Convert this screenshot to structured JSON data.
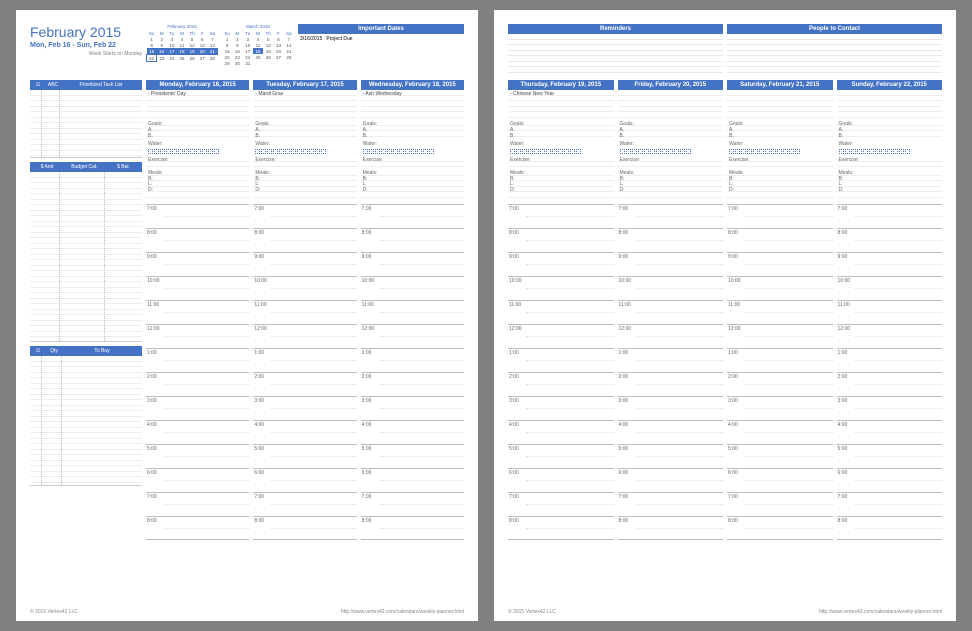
{
  "colors": {
    "accent": "#4472c4",
    "page_bg": "#ffffff",
    "app_bg": "#808080",
    "text_muted": "#7f7f7f",
    "grid": "#d0d0d0"
  },
  "header": {
    "month_title": "February 2015",
    "week_range": "Mon, Feb 16 - Sun, Feb 22",
    "week_start_label": "Week Starts on Monday"
  },
  "mini_calendars": [
    {
      "title": "February 2015",
      "dow": [
        "Su",
        "M",
        "Tu",
        "W",
        "Th",
        "F",
        "Sa"
      ],
      "rows": [
        [
          "1",
          "2",
          "3",
          "4",
          "5",
          "6",
          "7"
        ],
        [
          "8",
          "9",
          "10",
          "11",
          "12",
          "13",
          "14"
        ],
        [
          "15",
          "16",
          "17",
          "18",
          "19",
          "20",
          "21"
        ],
        [
          "22",
          "23",
          "24",
          "25",
          "26",
          "27",
          "28"
        ],
        [
          "",
          "",
          "",
          "",
          "",
          "",
          ""
        ]
      ],
      "highlight_row": 2,
      "box_cell": [
        3,
        0
      ]
    },
    {
      "title": "March 2015",
      "dow": [
        "Su",
        "M",
        "Tu",
        "W",
        "Th",
        "F",
        "Sa"
      ],
      "rows": [
        [
          "1",
          "2",
          "3",
          "4",
          "5",
          "6",
          "7"
        ],
        [
          "8",
          "9",
          "10",
          "11",
          "12",
          "13",
          "14"
        ],
        [
          "15",
          "16",
          "17",
          "18",
          "19",
          "20",
          "21"
        ],
        [
          "22",
          "23",
          "24",
          "25",
          "26",
          "27",
          "28"
        ],
        [
          "29",
          "30",
          "31",
          "",
          "",
          "",
          ""
        ]
      ],
      "highlight_cell": [
        2,
        3
      ]
    }
  ],
  "important_dates": {
    "title": "Important Dates",
    "items": [
      {
        "date": "3/16/2015",
        "text": "Project Due"
      }
    ]
  },
  "reminders": {
    "title": "Reminders"
  },
  "people": {
    "title": "People to Contact"
  },
  "left_panels": {
    "tasks": {
      "cols": [
        "☑",
        "ABC",
        "Prioritized Task List"
      ]
    },
    "budget": {
      "cols": [
        "$ Amt",
        "Budget Cat.",
        "$ Bal."
      ]
    },
    "buy": {
      "cols": [
        "☑",
        "Qty",
        "To Buy"
      ]
    }
  },
  "days": [
    {
      "header": "Monday, February 16, 2015",
      "events": [
        "Presidents' Day"
      ]
    },
    {
      "header": "Tuesday, February 17, 2015",
      "events": [
        "Mardi Gras"
      ]
    },
    {
      "header": "Wednesday, February 18, 2015",
      "events": [
        "Ash Wednesday"
      ]
    },
    {
      "header": "Thursday, February 19, 2015",
      "events": [
        "Chinese New Year"
      ]
    },
    {
      "header": "Friday, February 20, 2015",
      "events": []
    },
    {
      "header": "Saturday, February 21, 2015",
      "events": []
    },
    {
      "header": "Sunday, February 22, 2015",
      "events": []
    }
  ],
  "day_section_labels": {
    "goals": "Goals:",
    "goal_items": [
      "A.",
      "B."
    ],
    "water": "Water:",
    "water_boxes": 12,
    "exercise": "Exercise:",
    "meals": "Meals:",
    "meal_items": [
      "B:",
      "L:",
      "D:"
    ]
  },
  "schedule_hours": [
    "7:00",
    "8:00",
    "9:00",
    "10:00",
    "11:00",
    "12:00",
    "1:00",
    "2:00",
    "3:00",
    "4:00",
    "5:00",
    "6:00",
    "7:00",
    "8:00"
  ],
  "footer": {
    "copyright": "© 2015 Vertex42 LLC",
    "url": "http://www.vertex42.com/calendars/weekly-planner.html"
  }
}
